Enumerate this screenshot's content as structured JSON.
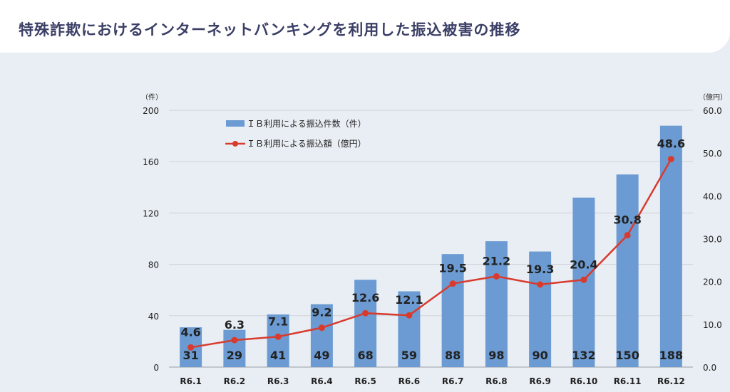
{
  "page": {
    "title": "特殊詐欺におけるインターネットバンキングを利用した振込被害の推移"
  },
  "colors": {
    "bar": "#6b9bd2",
    "line": "#d83b2e",
    "grid": "#cfd3d8",
    "text": "#222222",
    "title": "#3b3f66"
  },
  "chart_data": {
    "type": "bar",
    "title": "特殊詐欺におけるインターネットバンキングを利用した振込被害の推移",
    "categories": [
      "R6.1",
      "R6.2",
      "R6.3",
      "R6.4",
      "R6.5",
      "R6.6",
      "R6.7",
      "R6.8",
      "R6.9",
      "R6.10",
      "R6.11",
      "R6.12"
    ],
    "left_axis": {
      "unit": "（件）",
      "ylim": [
        0,
        200
      ],
      "ticks": [
        "0",
        "40",
        "80",
        "120",
        "160",
        "200"
      ]
    },
    "right_axis": {
      "unit": "（億円）",
      "ylim": [
        0,
        60
      ],
      "ticks": [
        "0.0",
        "10.0",
        "20.0",
        "30.0",
        "40.0",
        "50.0",
        "60.0"
      ]
    },
    "grid": true,
    "legend_position": "top-left",
    "series": [
      {
        "name": "ＩＢ利用による振込件数（件）",
        "type": "bar",
        "axis": "left",
        "values": [
          31,
          29,
          41,
          49,
          68,
          59,
          88,
          98,
          90,
          132,
          150,
          188
        ],
        "labels": [
          "31",
          "29",
          "41",
          "49",
          "68",
          "59",
          "88",
          "98",
          "90",
          "132",
          "150",
          "188"
        ]
      },
      {
        "name": "ＩＢ利用による振込額（億円）",
        "type": "line",
        "axis": "right",
        "values": [
          4.6,
          6.3,
          7.1,
          9.2,
          12.6,
          12.1,
          19.5,
          21.2,
          19.3,
          20.4,
          30.8,
          48.6
        ],
        "labels": [
          "4.6",
          "6.3",
          "7.1",
          "9.2",
          "12.6",
          "12.1",
          "19.5",
          "21.2",
          "19.3",
          "20.4",
          "30.8",
          "48.6"
        ]
      }
    ]
  }
}
